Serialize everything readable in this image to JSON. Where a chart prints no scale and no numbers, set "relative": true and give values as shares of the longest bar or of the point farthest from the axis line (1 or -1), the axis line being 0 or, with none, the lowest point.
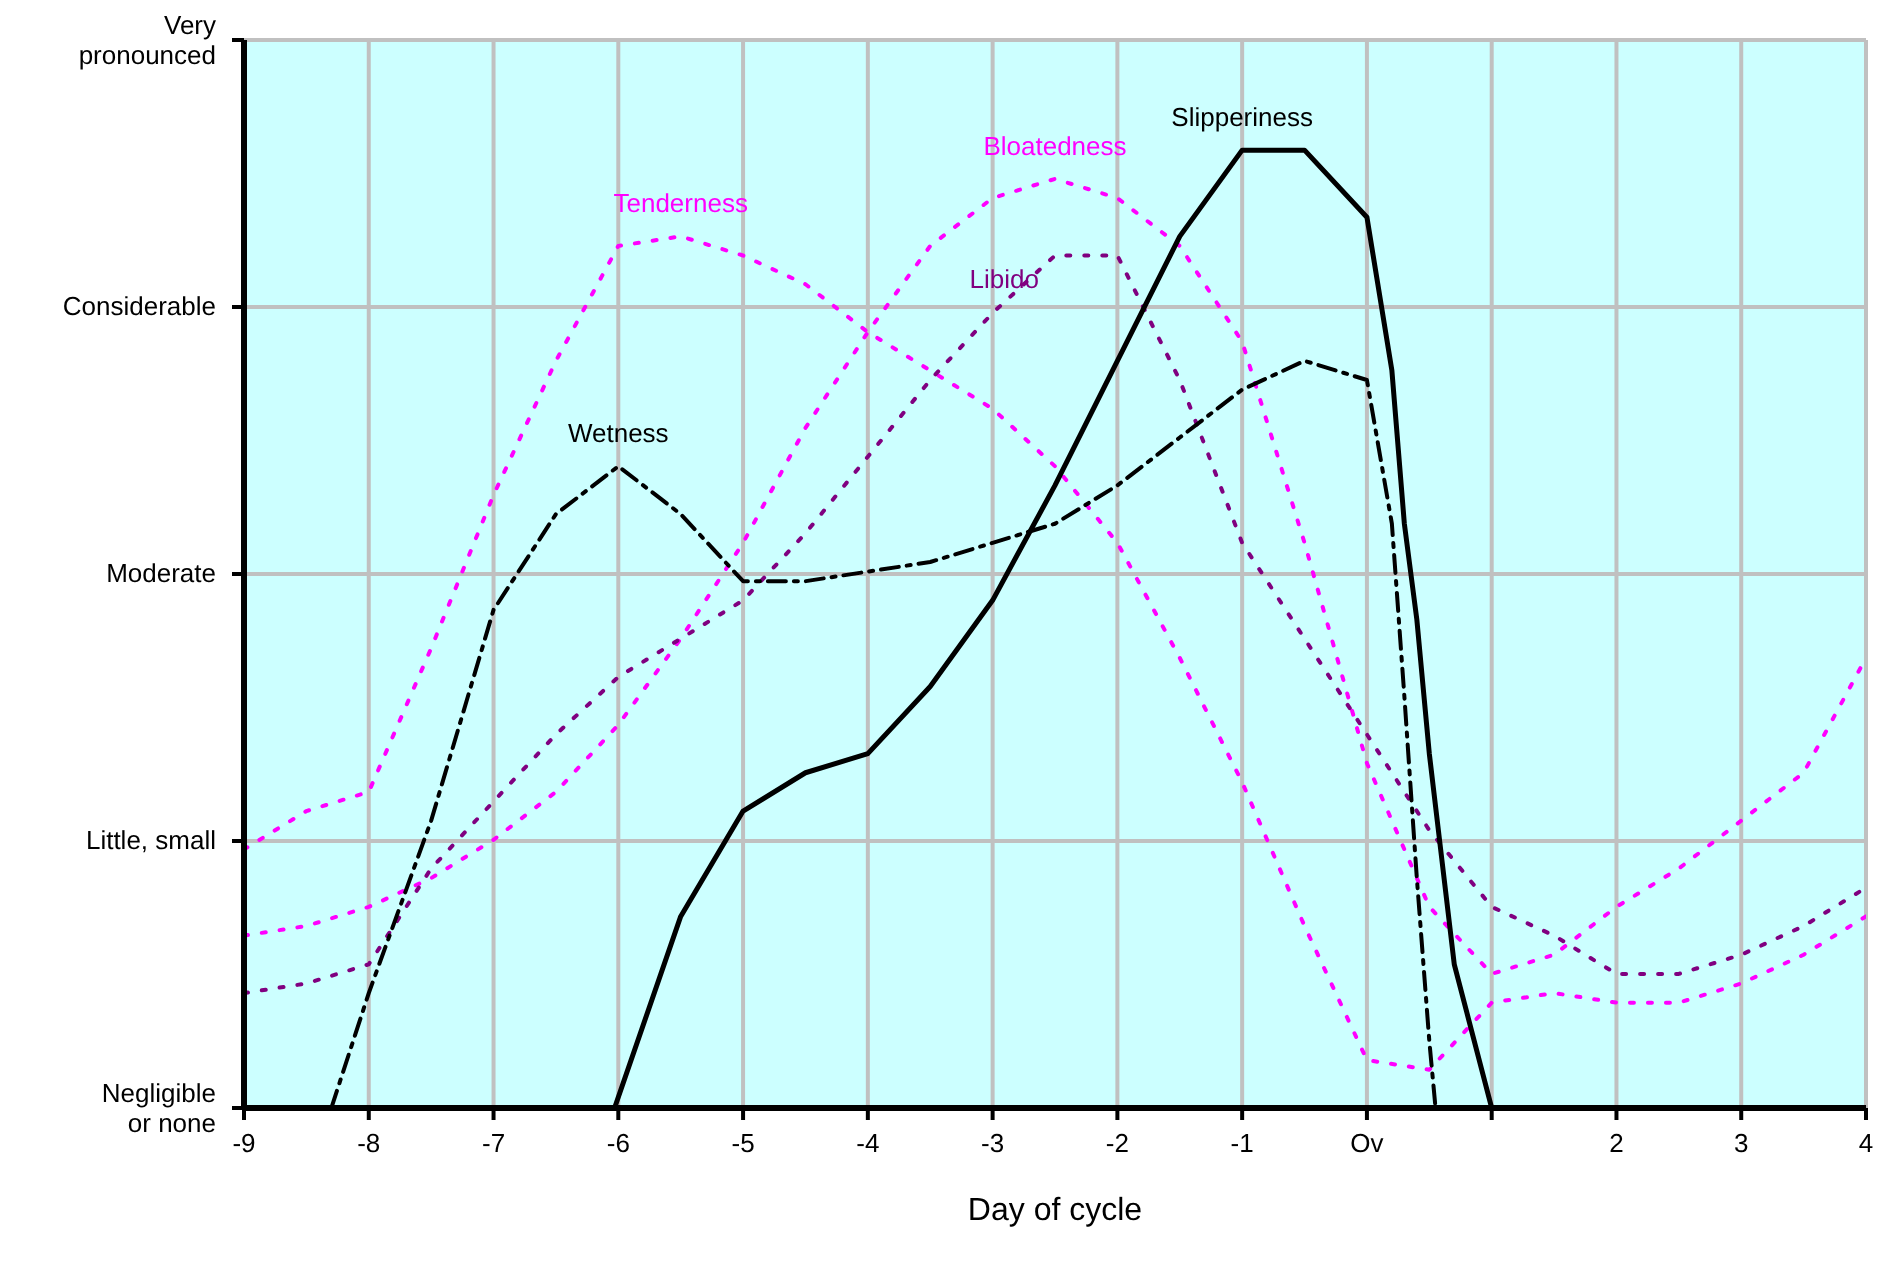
{
  "chart_data": {
    "type": "line",
    "xlabel": "Day of cycle",
    "relative": true,
    "xlim": [
      -9,
      4
    ],
    "xticks": [
      -9,
      -8,
      -7,
      -6,
      -5,
      -4,
      -3,
      -2,
      -1,
      {
        "value": 0,
        "label": "Ov"
      },
      {
        "value": 1,
        "label": null
      },
      2,
      3,
      4
    ],
    "annotations": [
      "Negligible or none",
      "Little, small",
      "Moderate",
      "Considerable",
      "Very pronounced"
    ],
    "grid": true,
    "legend": false,
    "marker": "none",
    "series": [
      {
        "name": "Tenderness",
        "color": "#ff00ff",
        "line_style": "dotted",
        "x": [
          -9,
          -8.5,
          -8,
          -7.5,
          -7,
          -6.5,
          -6,
          -5.5,
          -5,
          -4.5,
          -4,
          -3.5,
          -3,
          -2.5,
          -2,
          -1.5,
          -1,
          -0.5,
          0,
          0.5,
          1,
          1.5,
          2,
          2.5,
          3,
          3.5,
          4
        ],
        "values": [
          0.27,
          0.31,
          0.33,
          0.48,
          0.64,
          0.78,
          0.9,
          0.91,
          0.89,
          0.86,
          0.81,
          0.77,
          0.73,
          0.67,
          0.59,
          0.47,
          0.34,
          0.19,
          0.05,
          0.04,
          0.11,
          0.12,
          0.11,
          0.11,
          0.13,
          0.16,
          0.2
        ]
      },
      {
        "name": "Bloatedness",
        "color": "#ff00ff",
        "line_style": "dotted",
        "x": [
          -9,
          -8.5,
          -8,
          -7.5,
          -7,
          -6.5,
          -6,
          -5.5,
          -5,
          -4.5,
          -4,
          -3.5,
          -3,
          -2.5,
          -2,
          -1.5,
          -1,
          -0.5,
          0,
          0.5,
          1,
          1.5,
          2,
          2.5,
          3,
          3.5,
          4
        ],
        "values": [
          0.18,
          0.19,
          0.21,
          0.24,
          0.28,
          0.33,
          0.4,
          0.49,
          0.59,
          0.71,
          0.81,
          0.9,
          0.95,
          0.97,
          0.95,
          0.9,
          0.8,
          0.59,
          0.36,
          0.21,
          0.14,
          0.16,
          0.21,
          0.25,
          0.3,
          0.35,
          0.47
        ]
      },
      {
        "name": "Libido",
        "color": "#800080",
        "line_style": "dotted",
        "x": [
          -9,
          -8.5,
          -8,
          -7.5,
          -7,
          -6.5,
          -6,
          -5.5,
          -5,
          -4.5,
          -4,
          -3.5,
          -3,
          -2.5,
          -2,
          -1.5,
          -1,
          -0.5,
          0,
          0.5,
          1,
          1.5,
          2,
          2.5,
          3,
          3.5,
          4
        ],
        "values": [
          0.12,
          0.13,
          0.15,
          0.25,
          0.32,
          0.39,
          0.45,
          0.49,
          0.53,
          0.6,
          0.68,
          0.76,
          0.83,
          0.89,
          0.89,
          0.76,
          0.59,
          0.49,
          0.39,
          0.29,
          0.21,
          0.18,
          0.14,
          0.14,
          0.16,
          0.19,
          0.23
        ]
      },
      {
        "name": "Wetness",
        "color": "#000000",
        "line_style": "dashed",
        "x": [
          -8.3,
          -8,
          -7.5,
          -7,
          -6.5,
          -6,
          -5.5,
          -5,
          -4.5,
          -4,
          -3.5,
          -3,
          -2.5,
          -2,
          -1.5,
          -1,
          -0.5,
          0,
          0.2,
          0.3,
          0.4,
          0.5,
          0.55
        ],
        "values": [
          0,
          0.12,
          0.3,
          0.52,
          0.62,
          0.67,
          0.62,
          0.55,
          0.55,
          0.56,
          0.57,
          0.59,
          0.61,
          0.65,
          0.7,
          0.75,
          0.78,
          0.76,
          0.61,
          0.43,
          0.24,
          0.07,
          0
        ]
      },
      {
        "name": "Slipperiness",
        "color": "#000000",
        "line_style": "solid",
        "x": [
          -6.03,
          -5.5,
          -5,
          -4.5,
          -4,
          -3.5,
          -3,
          -2.5,
          -2,
          -1.5,
          -1,
          -0.5,
          0,
          0.2,
          0.3,
          0.4,
          0.5,
          0.6,
          0.7,
          0.8,
          0.9,
          1.0
        ],
        "values": [
          0,
          0.2,
          0.31,
          0.35,
          0.37,
          0.44,
          0.53,
          0.65,
          0.78,
          0.91,
          1,
          1,
          0.93,
          0.77,
          0.61,
          0.51,
          0.37,
          0.26,
          0.15,
          0.1,
          0.05,
          0
        ]
      }
    ]
  }
}
